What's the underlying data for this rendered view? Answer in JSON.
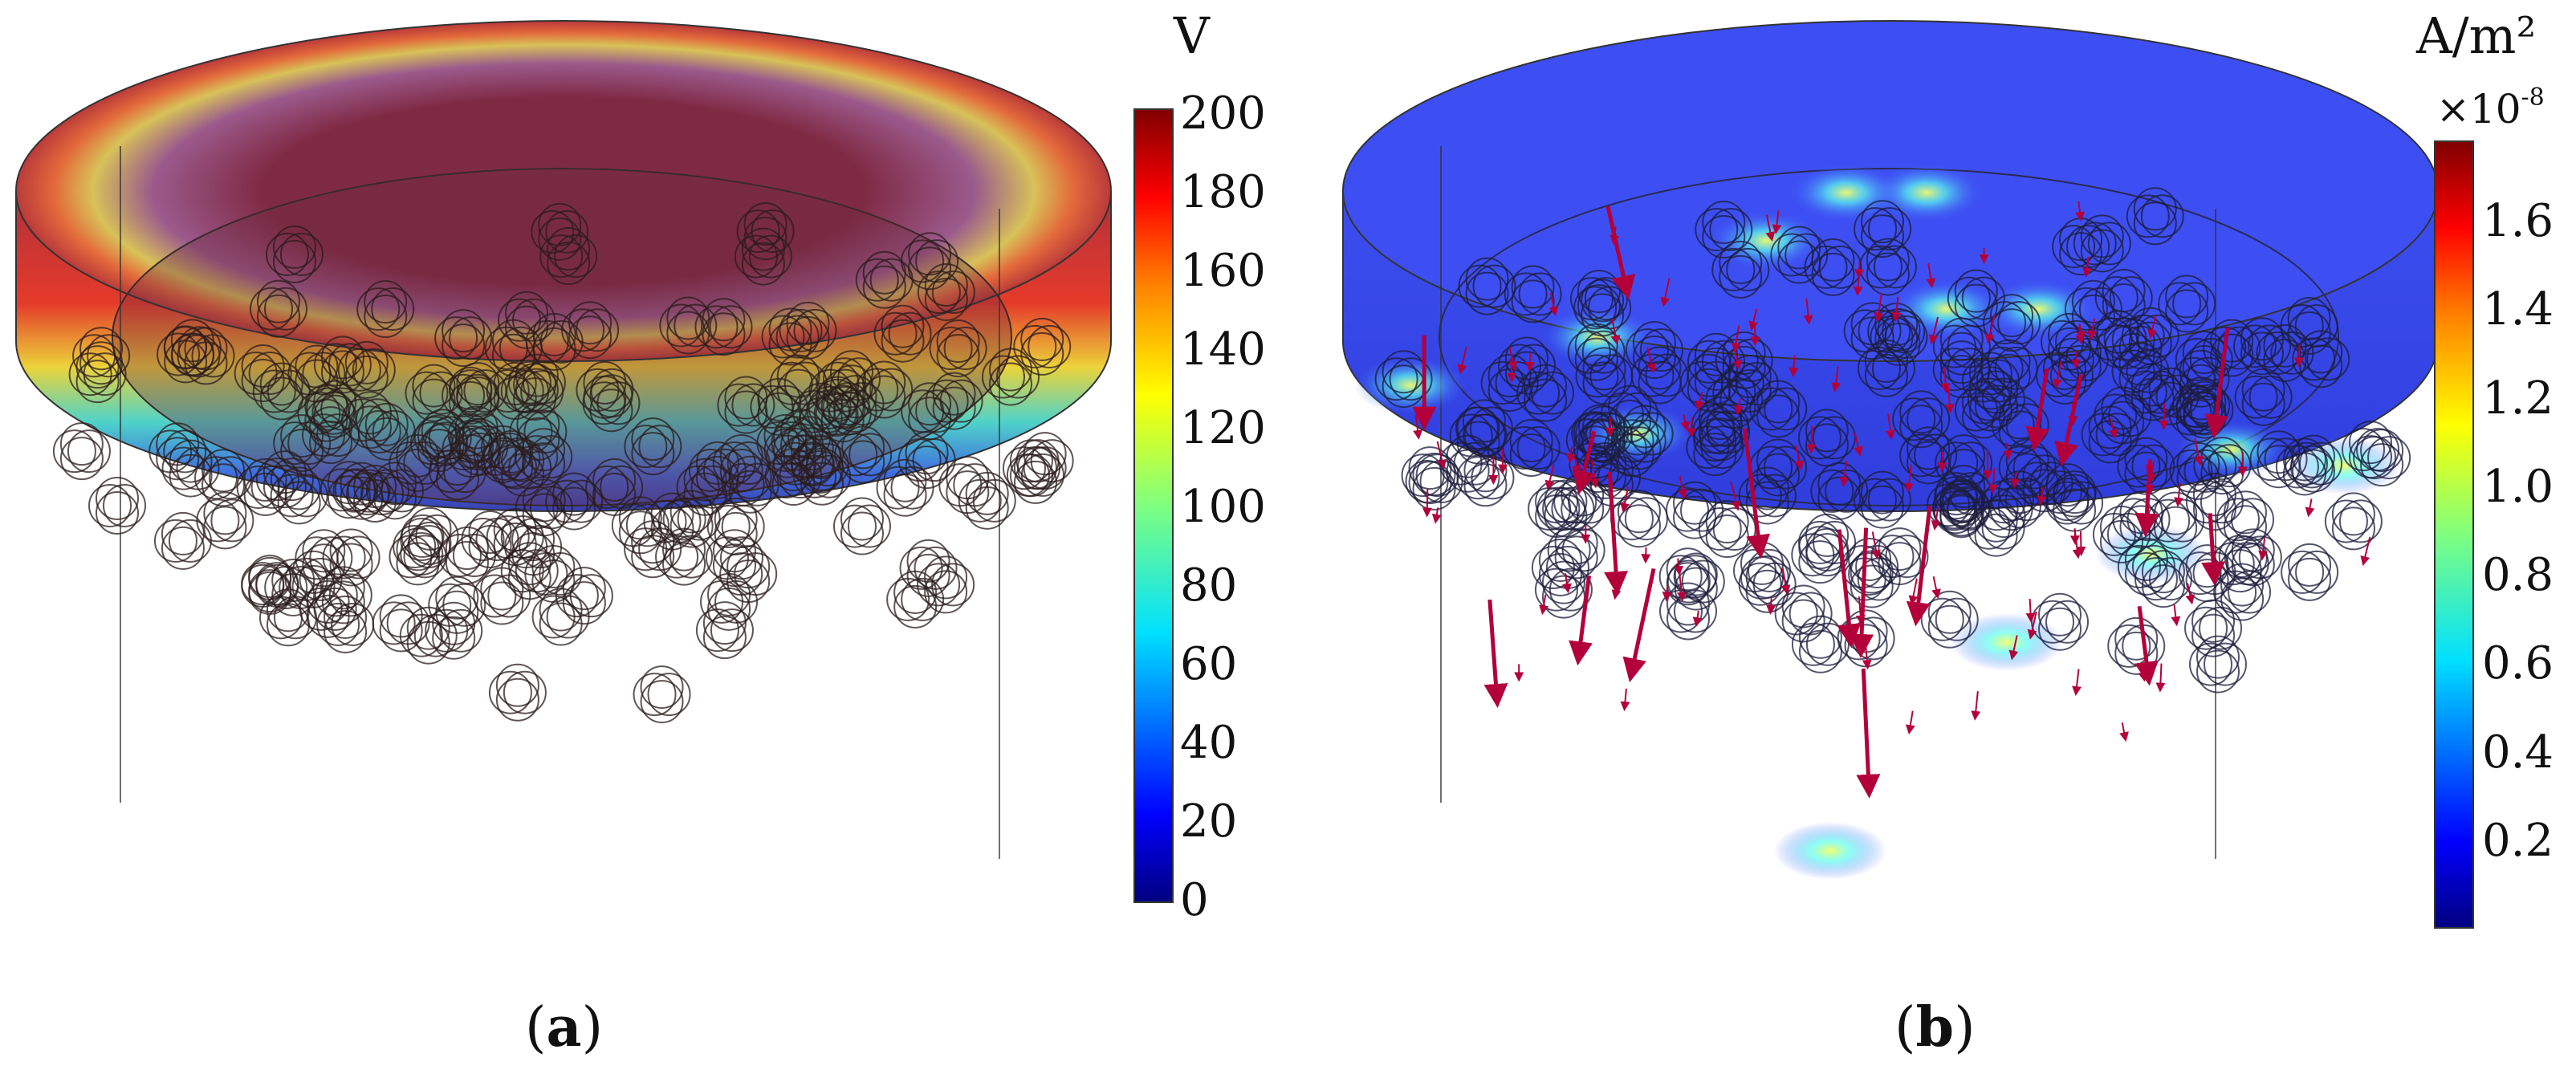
{
  "panel_a": {
    "label": "a",
    "unit": "V",
    "colorbar_ticks": [
      "200",
      "180",
      "160",
      "140",
      "120",
      "100",
      "80",
      "60",
      "40",
      "20",
      "0"
    ],
    "range": [
      0,
      200
    ]
  },
  "panel_b": {
    "label": "b",
    "unit": "A/m²",
    "multiplier_base": "×10",
    "multiplier_exp": "-8",
    "colorbar_ticks": [
      "1.6",
      "1.4",
      "1.2",
      "1.0",
      "0.8",
      "0.6",
      "0.4",
      "0.2"
    ]
  },
  "colors": {
    "jet": [
      "#00007f",
      "#0000ff",
      "#007fff",
      "#00ffff",
      "#7fff7f",
      "#ffff00",
      "#ff7f00",
      "#ff0000",
      "#7f0000"
    ],
    "arrow": "#b3003a",
    "panel_b_body": "#3344e6"
  }
}
